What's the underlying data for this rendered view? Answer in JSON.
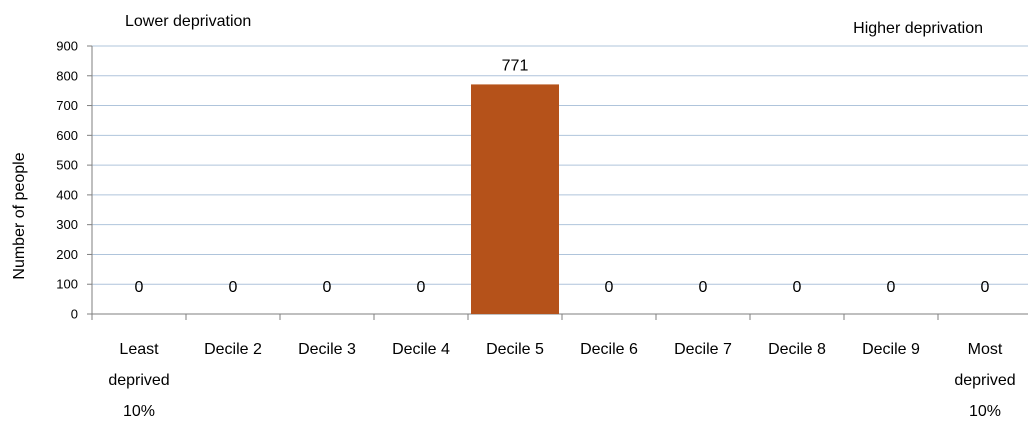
{
  "chart_data": {
    "type": "bar",
    "title": "",
    "xlabel": "",
    "ylabel": "Number of people",
    "ylim": [
      0,
      900
    ],
    "yticks": [
      0,
      100,
      200,
      300,
      400,
      500,
      600,
      700,
      800,
      900
    ],
    "grid": true,
    "legend": "none",
    "categories": [
      [
        "Least",
        "deprived",
        "10%"
      ],
      [
        "Decile 2"
      ],
      [
        "Decile 3"
      ],
      [
        "Decile 4"
      ],
      [
        "Decile 5"
      ],
      [
        "Decile 6"
      ],
      [
        "Decile 7"
      ],
      [
        "Decile 8"
      ],
      [
        "Decile 9"
      ],
      [
        "Most",
        "deprived",
        "10%"
      ]
    ],
    "values": [
      0,
      0,
      0,
      0,
      771,
      0,
      0,
      0,
      0,
      0
    ],
    "data_labels": [
      "0",
      "0",
      "0",
      "0",
      "771",
      "0",
      "0",
      "0",
      "0",
      "0"
    ],
    "annotations": {
      "left": "Lower deprivation",
      "right": "Higher deprivation"
    },
    "colors": {
      "bar": "#B5521A",
      "grid": "#AFC4DB",
      "axis": "#7F7F7F"
    }
  }
}
